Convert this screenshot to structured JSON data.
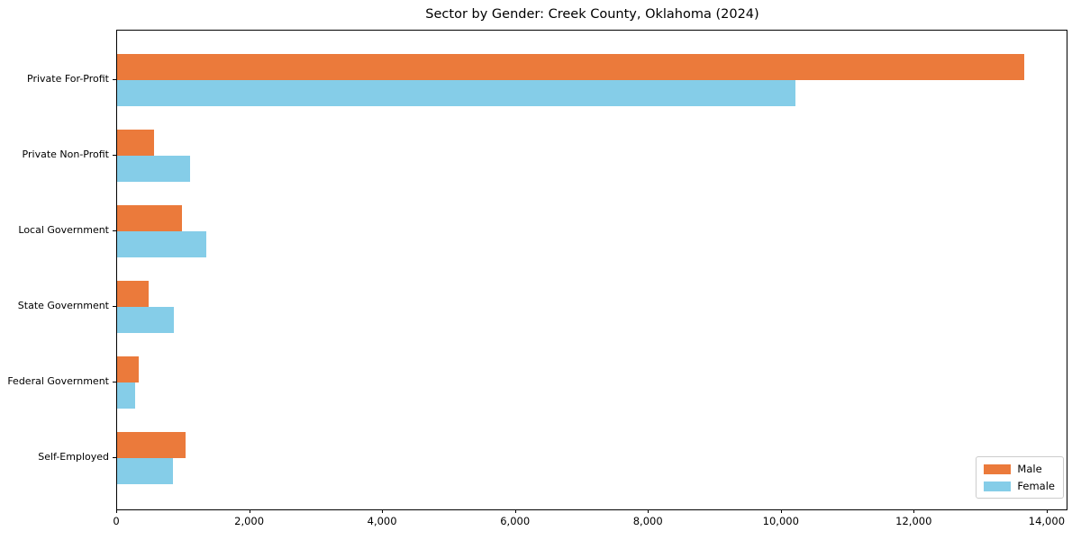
{
  "chart_data": {
    "type": "bar",
    "orientation": "horizontal",
    "title": "Sector by Gender: Creek County, Oklahoma (2024)",
    "xlabel": "",
    "ylabel": "",
    "categories": [
      "Private For-Profit",
      "Private Non-Profit",
      "Local Government",
      "State Government",
      "Federal Government",
      "Self-Employed"
    ],
    "series": [
      {
        "name": "Male",
        "color": "#eb7a3b",
        "values": [
          13650,
          560,
          980,
          480,
          330,
          1030
        ]
      },
      {
        "name": "Female",
        "color": "#85cde8",
        "values": [
          10200,
          1100,
          1340,
          850,
          270,
          840
        ]
      }
    ],
    "xlim": [
      0,
      14300
    ],
    "x_ticks": [
      0,
      2000,
      4000,
      6000,
      8000,
      10000,
      12000,
      14000
    ],
    "x_tick_labels": [
      "0",
      "2,000",
      "4,000",
      "6,000",
      "8,000",
      "10,000",
      "12,000",
      "14,000"
    ],
    "grid": false,
    "legend": {
      "position": "lower right",
      "entries": [
        "Male",
        "Female"
      ]
    }
  }
}
